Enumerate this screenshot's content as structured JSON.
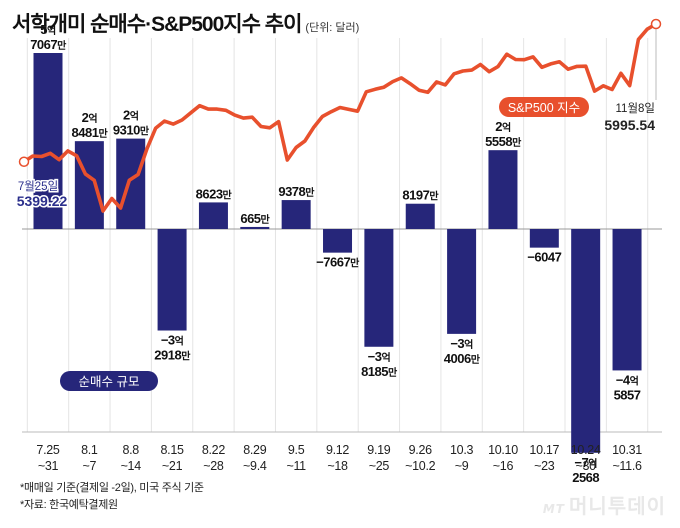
{
  "title": "서학개미 순매수·S&P500지수 추이",
  "unit": "(단위: 달러)",
  "notes": [
    "*매매일 기준(결제일 -2일), 미국 주식 기준",
    "*자료: 한국예탁결제원"
  ],
  "logo": {
    "mark": "MT",
    "text": "머니투데이"
  },
  "colors": {
    "bar": "#26267a",
    "line": "#e8502d",
    "text": "#111111"
  },
  "chart_data": [
    {
      "type": "bar",
      "title": "순매수 규모",
      "categories": [
        "7.25~31",
        "8.1~7",
        "8.8~14",
        "8.15~21",
        "8.22~28",
        "8.29~9.4",
        "9.5~11",
        "9.12~18",
        "9.19~25",
        "9.26~10.2",
        "10.3~9",
        "10.10~16",
        "10.17~23",
        "10.24~30",
        "10.31~11.6"
      ],
      "tick_labels": [
        [
          "7.25",
          "~31"
        ],
        [
          "8.1",
          "~7"
        ],
        [
          "8.8",
          "~14"
        ],
        [
          "8.15",
          "~21"
        ],
        [
          "8.22",
          "~28"
        ],
        [
          "8.29",
          "~9.4"
        ],
        [
          "9.5",
          "~11"
        ],
        [
          "9.12",
          "~18"
        ],
        [
          "9.19",
          "~25"
        ],
        [
          "9.26",
          "~10.2"
        ],
        [
          "10.3",
          "~9"
        ],
        [
          "10.10",
          "~16"
        ],
        [
          "10.17",
          "~23"
        ],
        [
          "10.24",
          "~30"
        ],
        [
          "10.31",
          "~11.6"
        ]
      ],
      "values": [
        570670000,
        284810000,
        293100000,
        -329180000,
        86230000,
        6650000,
        93780000,
        -76670000,
        -381850000,
        81970000,
        -340060000,
        255580000,
        -60470000,
        -725680000,
        -458570000
      ],
      "value_labels": [
        [
          "5억",
          "7067만"
        ],
        [
          "2억",
          "8481만"
        ],
        [
          "2억",
          "9310만"
        ],
        [
          "−3억",
          "2918만"
        ],
        [
          "8623만"
        ],
        [
          "665만"
        ],
        [
          "9378만"
        ],
        [
          "−7667만"
        ],
        [
          "−3억",
          "8185만"
        ],
        [
          "8197만"
        ],
        [
          "−3억",
          "4006만"
        ],
        [
          "2억",
          "5558만"
        ],
        [
          "−6047"
        ],
        [
          "−7억",
          "2568"
        ],
        [
          "−4억",
          "5857"
        ]
      ]
    },
    {
      "type": "line",
      "title": "S&P500 지수",
      "values": [
        5399.22,
        5424,
        5422,
        5436,
        5408,
        5446,
        5425,
        5346,
        5319,
        5186,
        5240,
        5199,
        5319,
        5344,
        5455,
        5545,
        5575,
        5562,
        5580,
        5611,
        5642,
        5627,
        5627,
        5622,
        5601,
        5588,
        5592,
        5552,
        5546,
        5573,
        5407,
        5461,
        5489,
        5548,
        5595,
        5616,
        5634,
        5626,
        5618,
        5702,
        5713,
        5722,
        5746,
        5762,
        5737,
        5709,
        5700,
        5745,
        5732,
        5780,
        5792,
        5796,
        5820,
        5789,
        5811,
        5865,
        5842,
        5841,
        5853,
        5808,
        5823,
        5832,
        5800,
        5812,
        5813,
        5705,
        5728,
        5712,
        5782,
        5729,
        5929,
        5973,
        5995.54
      ],
      "start_label": [
        "7월25일",
        "5399.22"
      ],
      "end_label": [
        "11월8일",
        "5995.54"
      ]
    }
  ]
}
